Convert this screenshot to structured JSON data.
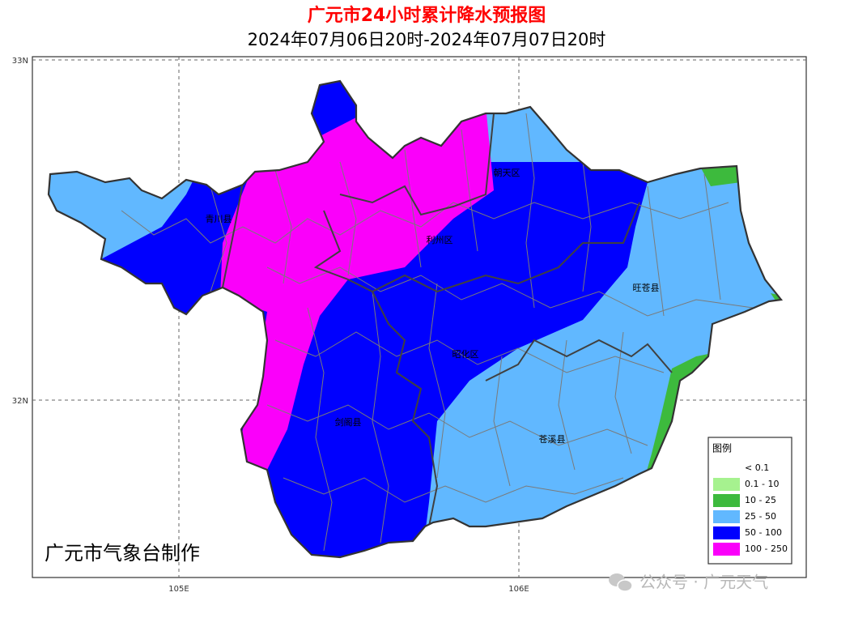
{
  "title": "广元市24小时累计降水预报图",
  "subtitle": "2024年07月06日20时-2024年07月07日20时",
  "axes": {
    "lat": [
      "33N",
      "32N"
    ],
    "lon": [
      "105E",
      "106E"
    ]
  },
  "counties": [
    "青川县",
    "朝天区",
    "利州区",
    "旺苍县",
    "昭化区",
    "剑阁县",
    "苍溪县"
  ],
  "legend": {
    "title": "图例",
    "items": [
      {
        "label": "< 0.1",
        "color": "#ffffff"
      },
      {
        "label": "0.1 - 10",
        "color": "#a6f28f"
      },
      {
        "label": "10 - 25",
        "color": "#3dba3d"
      },
      {
        "label": "25 - 50",
        "color": "#61b8ff"
      },
      {
        "label": "50 - 100",
        "color": "#0000fe"
      },
      {
        "label": "100 - 250",
        "color": "#fa00fa"
      }
    ]
  },
  "credit": "广元市气象台制作",
  "watermark": "公众号 · 广元天气"
}
